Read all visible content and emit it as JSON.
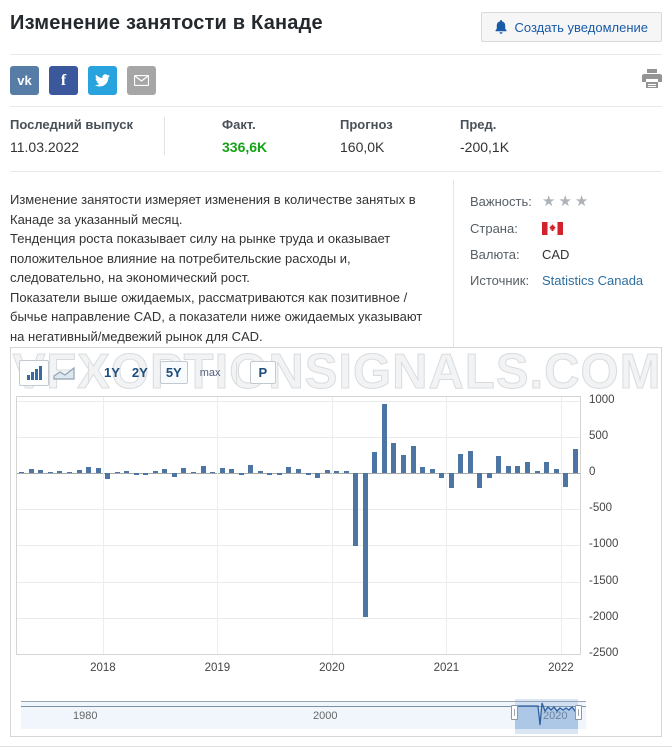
{
  "page": {
    "title": "Изменение занятости в Канаде",
    "alert_button": "Создать уведомление"
  },
  "share": {
    "icons": [
      {
        "name": "vk",
        "label": "vk",
        "color": "#577ca5"
      },
      {
        "name": "facebook",
        "label": "f",
        "color": "#3a589b"
      },
      {
        "name": "twitter",
        "label": "",
        "color": "#29a3dd"
      },
      {
        "name": "email",
        "label": "",
        "color": "#a6a6a6"
      }
    ]
  },
  "release": {
    "last_release_label": "Последний выпуск",
    "last_release_date": "11.03.2022",
    "actual_label": "Факт.",
    "actual_value": "336,6K",
    "actual_color": "#17a317",
    "forecast_label": "Прогноз",
    "forecast_value": "160,0K",
    "previous_label": "Пред.",
    "previous_value": "-200,1K"
  },
  "description": {
    "p1": "Изменение занятости измеряет изменения в количестве занятых в Канаде за указанный месяц.",
    "p2": "Тенденция роста показывает силу на рынке труда и оказывает положительное влияние на потребительские расходы и, следовательно, на экономический рост.",
    "p3": "Показатели выше ожидаемых, рассматриваются как позитивное / бычье направление CAD, а показатели ниже ожидаемых указывают на негативный/медвежий рынок для CAD."
  },
  "info": {
    "importance_label": "Важность:",
    "importance_stars": "★★★",
    "country_label": "Страна:",
    "country": "Canada",
    "currency_label": "Валюта:",
    "currency_value": "CAD",
    "source_label": "Источник:",
    "source_value": "Statistics Canada",
    "link_color": "#2e6e9e"
  },
  "chart": {
    "watermark": "VFXOPTIONSIGNALS.COM",
    "ranges": {
      "r1": "1Y",
      "r2": "2Y",
      "r3": "5Y",
      "r4": "max"
    },
    "selected_range": "5Y",
    "p_button": "P",
    "bar_color": "#4d75a3"
  },
  "chart_data": {
    "type": "bar",
    "title": "Изменение занятости в Канаде",
    "unit": "K",
    "x": [
      "2017-04",
      "2017-05",
      "2017-06",
      "2017-07",
      "2017-08",
      "2017-09",
      "2017-10",
      "2017-11",
      "2017-12",
      "2018-01",
      "2018-02",
      "2018-03",
      "2018-04",
      "2018-05",
      "2018-06",
      "2018-07",
      "2018-08",
      "2018-09",
      "2018-10",
      "2018-11",
      "2018-12",
      "2019-01",
      "2019-02",
      "2019-03",
      "2019-04",
      "2019-05",
      "2019-06",
      "2019-07",
      "2019-08",
      "2019-09",
      "2019-10",
      "2019-11",
      "2019-12",
      "2020-01",
      "2020-02",
      "2020-03",
      "2020-04",
      "2020-05",
      "2020-06",
      "2020-07",
      "2020-08",
      "2020-09",
      "2020-10",
      "2020-11",
      "2020-12",
      "2021-01",
      "2021-02",
      "2021-03",
      "2021-04",
      "2021-05",
      "2021-06",
      "2021-07",
      "2021-08",
      "2021-09",
      "2021-10",
      "2021-11",
      "2021-12",
      "2022-01",
      "2022-02"
    ],
    "values": [
      3.2,
      54.5,
      45.3,
      10.9,
      22.2,
      10.0,
      35.3,
      79.5,
      64.8,
      -88.0,
      15.4,
      32.3,
      -1.1,
      -7.5,
      31.8,
      54.1,
      -51.6,
      63.3,
      11.2,
      94.1,
      9.3,
      66.8,
      55.9,
      -7.2,
      106.5,
      27.7,
      -2.2,
      -24.2,
      81.1,
      53.7,
      -1.8,
      -71.2,
      35.2,
      34.5,
      30.3,
      -1010.7,
      -1993.8,
      289.6,
      952.9,
      418.5,
      245.8,
      378.2,
      83.6,
      62.1,
      -62.6,
      -212.8,
      259.2,
      303.1,
      -207.1,
      -68.0,
      230.7,
      94.0,
      90.2,
      157.1,
      31.2,
      153.7,
      54.7,
      -200.1,
      336.6
    ],
    "ylim": [
      -2500,
      1050
    ],
    "yticks": [
      1000,
      500,
      0,
      -500,
      -1000,
      -1500,
      -2000,
      -2500
    ],
    "xticks": [
      "2018",
      "2019",
      "2020",
      "2021",
      "2022"
    ],
    "xtick_indices": [
      9,
      21,
      33,
      45,
      57
    ],
    "grid": true,
    "legend": false
  },
  "navigator": {
    "lab1": "1980",
    "lab2": "2000",
    "lab3": "2020"
  }
}
